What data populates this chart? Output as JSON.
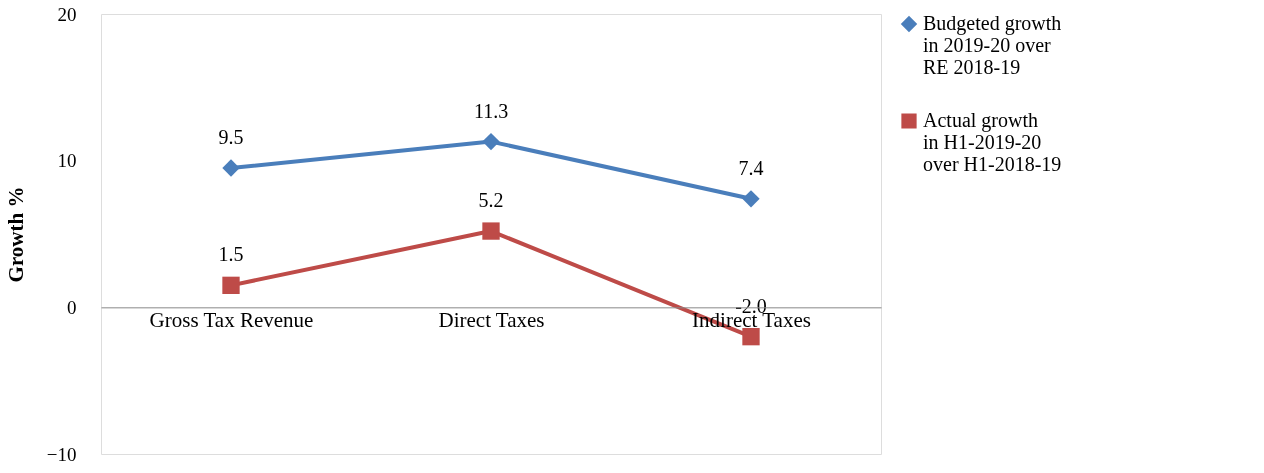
{
  "chart_data": {
    "type": "line",
    "ylabel": "Growth %",
    "categories": [
      "Gross Tax Revenue",
      "Direct Taxes",
      "Indirect Taxes"
    ],
    "series": [
      {
        "name": "Budgeted growth in 2019-20 over RE 2018-19",
        "color": "#4a7ebb",
        "marker": "diamond",
        "values": [
          9.5,
          11.3,
          7.4
        ],
        "value_labels": [
          "9.5",
          "11.3",
          "7.4"
        ]
      },
      {
        "name": "Actual growth in H1-2019-20 over H1-2018-19",
        "color": "#be4b48",
        "marker": "square",
        "values": [
          1.5,
          5.2,
          -2.0
        ],
        "value_labels": [
          "1.5",
          "5.2",
          "-2.0"
        ]
      }
    ],
    "ylim": [
      -10,
      20
    ],
    "yticks": [
      -10,
      0,
      10,
      20
    ],
    "grid": false,
    "legend": "right",
    "line_style": "solid"
  }
}
